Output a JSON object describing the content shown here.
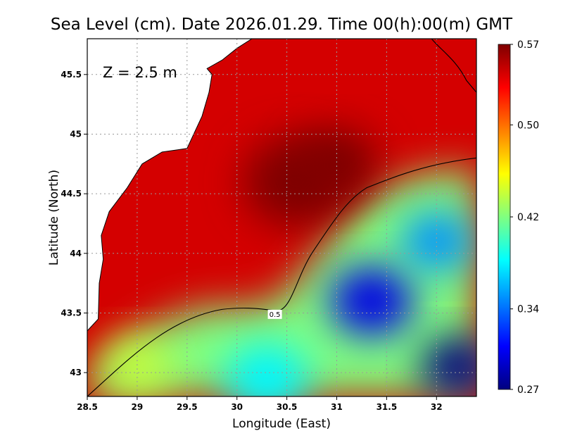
{
  "chart_data": {
    "type": "heatmap",
    "title": "Sea Level (cm). Date 2026.01.29. Time 00(h):00(m) GMT",
    "annotation": "Z = 2.5 m",
    "xlabel": "Longitude (East)",
    "ylabel": "Latitude (North)",
    "xlim": [
      28.5,
      32.4
    ],
    "ylim": [
      42.8,
      45.8
    ],
    "x_ticks": [
      28.5,
      29,
      29.5,
      30,
      30.5,
      31,
      31.5,
      32
    ],
    "x_tick_labels": [
      "28.5",
      "29",
      "29.5",
      "30",
      "30.5",
      "31",
      "31.5",
      "32"
    ],
    "y_ticks": [
      43,
      43.5,
      44,
      44.5,
      45,
      45.5
    ],
    "y_tick_labels": [
      "43",
      "43.5",
      "44",
      "44.5",
      "45",
      "45.5"
    ],
    "grid": true,
    "colorbar": {
      "min": 0.27,
      "max": 0.57,
      "tick_values": [
        0.57,
        0.5,
        0.42,
        0.34,
        0.27
      ],
      "tick_labels": [
        "0.57",
        "0.50",
        "0.42",
        "0.34",
        "0.27"
      ],
      "colormap": [
        "#00007f",
        "#0000ff",
        "#0080ff",
        "#00ffff",
        "#80ff80",
        "#ffff00",
        "#ff8000",
        "#ff0000",
        "#7f0000"
      ]
    },
    "contours": [
      {
        "level": 0.5,
        "label": "0.5"
      }
    ],
    "field_centers": [
      {
        "lon": 30.6,
        "lat": 44.6,
        "value": 0.57,
        "spread": 0.45
      },
      {
        "lon": 31.0,
        "lat": 44.75,
        "value": 0.57,
        "spread": 0.35
      },
      {
        "lon": 31.35,
        "lat": 43.6,
        "value": 0.3,
        "spread": 0.35
      },
      {
        "lon": 32.2,
        "lat": 43.05,
        "value": 0.27,
        "spread": 0.3
      },
      {
        "lon": 30.3,
        "lat": 42.95,
        "value": 0.38,
        "spread": 0.35
      },
      {
        "lon": 29.0,
        "lat": 43.05,
        "value": 0.44,
        "spread": 0.3
      },
      {
        "lon": 32.0,
        "lat": 44.1,
        "value": 0.35,
        "spread": 0.3
      }
    ]
  }
}
